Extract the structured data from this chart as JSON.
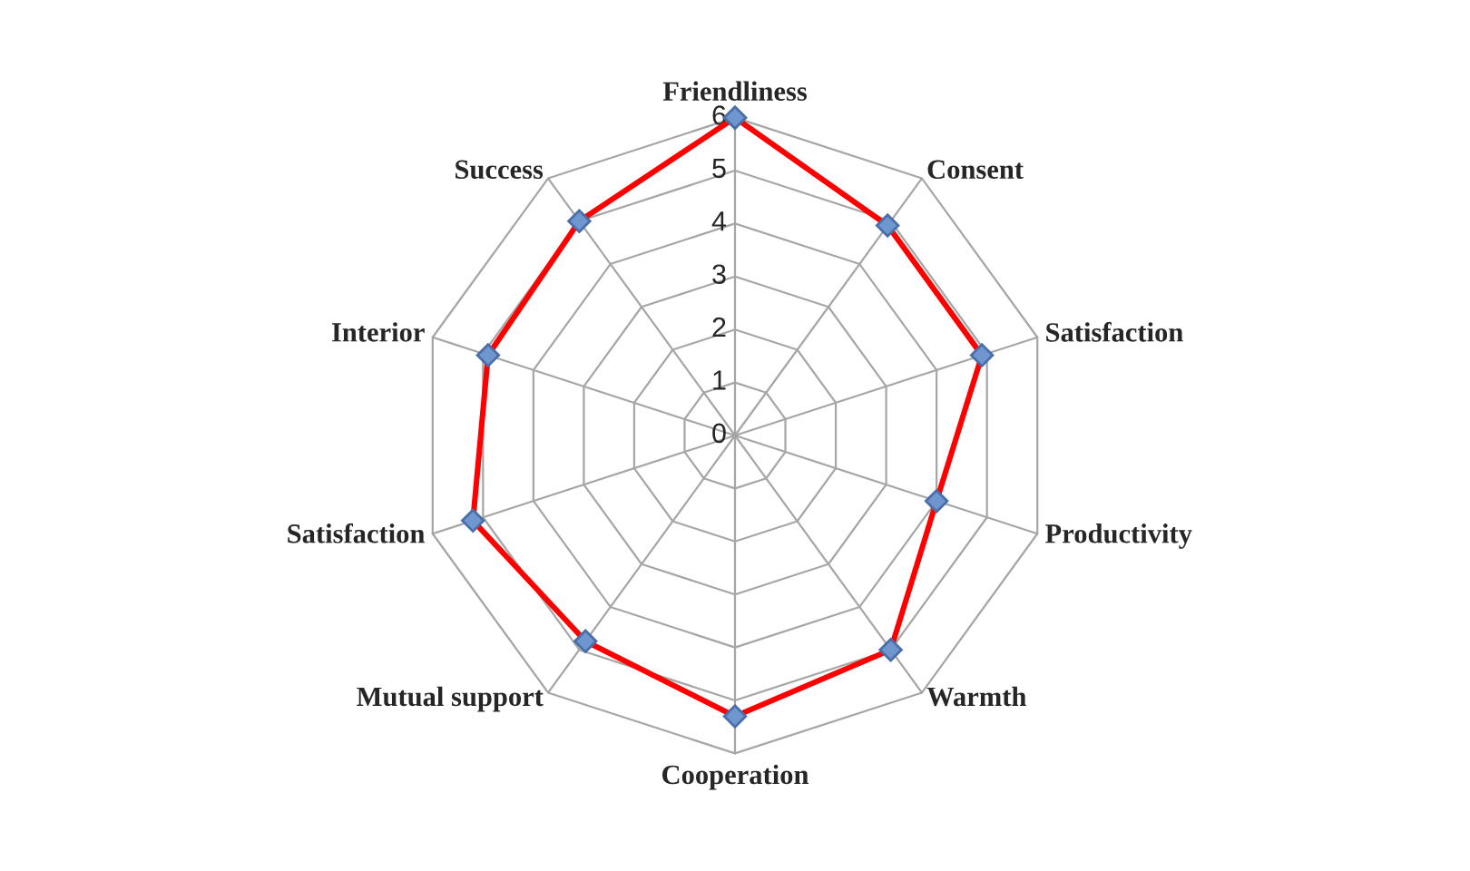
{
  "chart_data": {
    "type": "radar",
    "categories": [
      "Friendliness",
      "Consent",
      "Satisfaction",
      "Productivity",
      "Warmth",
      "Cooperation",
      "Mutual support",
      "Satisfaction",
      "Interior",
      "Success"
    ],
    "series": [
      {
        "color": "#ff0000",
        "values": [
          6,
          4.9,
          4.9,
          4.0,
          5.0,
          5.3,
          4.8,
          5.2,
          4.9,
          5.0
        ]
      }
    ],
    "ylim": [
      0,
      6
    ],
    "yticks": [
      0,
      1,
      2,
      3,
      4,
      5,
      6
    ],
    "grid": true,
    "marker": "diamond",
    "line_style": "solid"
  }
}
